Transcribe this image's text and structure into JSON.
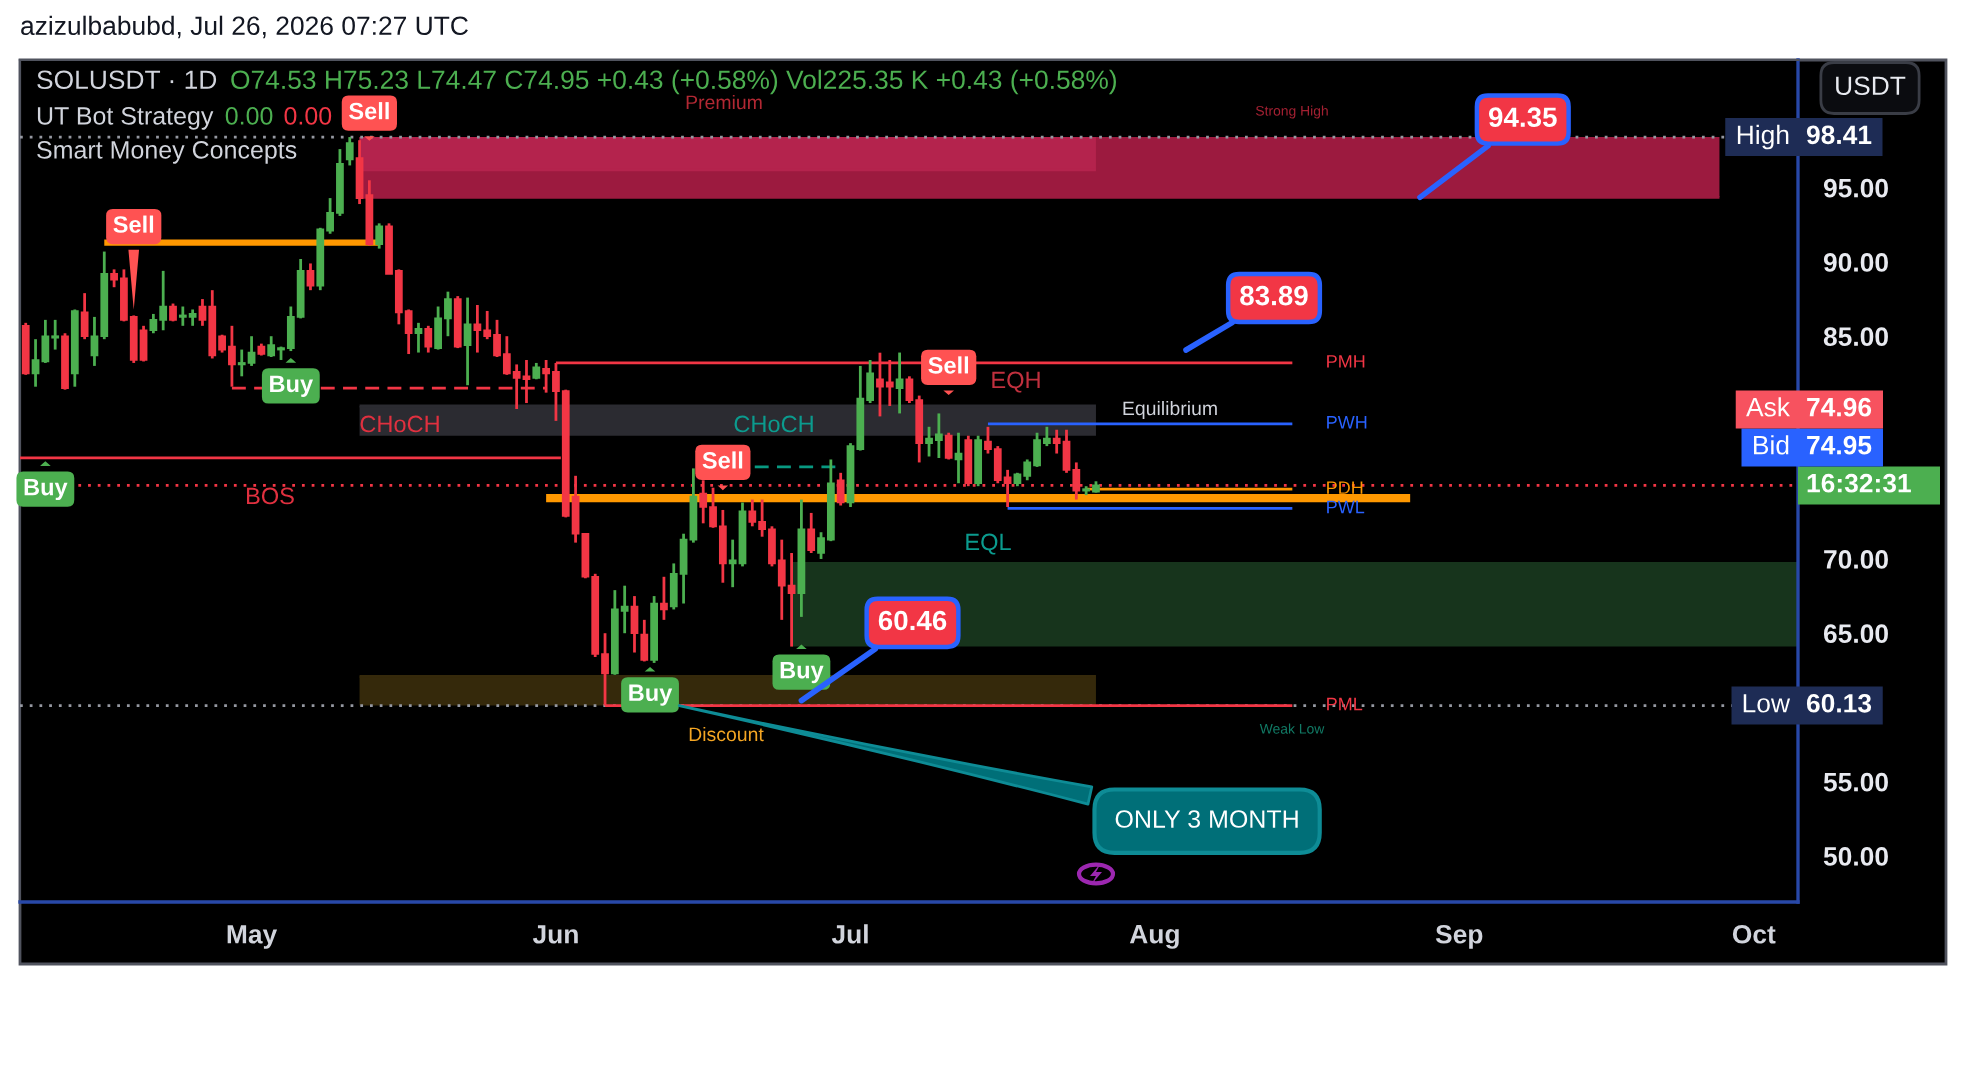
{
  "chart_data": {
    "type": "candlestick",
    "title": "SOLUSDT · 1D",
    "ylabel": "USDT",
    "x": [
      "2026-04-08",
      "2026-04-09",
      "2026-04-10",
      "2026-04-11",
      "2026-04-12",
      "2026-04-13",
      "2026-04-14",
      "2026-04-15",
      "2026-04-16",
      "2026-04-17",
      "2026-04-18",
      "2026-04-19",
      "2026-04-20",
      "2026-04-21",
      "2026-04-22",
      "2026-04-23",
      "2026-04-24",
      "2026-04-25",
      "2026-04-26",
      "2026-04-27",
      "2026-04-28",
      "2026-04-29",
      "2026-04-30",
      "2026-05-01",
      "2026-05-02",
      "2026-05-03",
      "2026-05-04",
      "2026-05-05",
      "2026-05-06",
      "2026-05-07",
      "2026-05-08",
      "2026-05-09",
      "2026-05-10",
      "2026-05-11",
      "2026-05-12",
      "2026-05-13",
      "2026-05-14",
      "2026-05-15",
      "2026-05-16",
      "2026-05-17",
      "2026-05-18",
      "2026-05-19",
      "2026-05-20",
      "2026-05-21",
      "2026-05-22",
      "2026-05-23",
      "2026-05-24",
      "2026-05-25",
      "2026-05-26",
      "2026-05-27",
      "2026-05-28",
      "2026-05-29",
      "2026-05-30",
      "2026-05-31",
      "2026-06-01",
      "2026-06-02",
      "2026-06-03",
      "2026-06-04",
      "2026-06-05",
      "2026-06-06",
      "2026-06-07",
      "2026-06-08",
      "2026-06-09",
      "2026-06-10",
      "2026-06-11",
      "2026-06-12",
      "2026-06-13",
      "2026-06-14",
      "2026-06-15",
      "2026-06-16",
      "2026-06-17",
      "2026-06-18",
      "2026-06-19",
      "2026-06-20",
      "2026-06-21",
      "2026-06-22",
      "2026-06-23",
      "2026-06-24",
      "2026-06-25",
      "2026-06-26",
      "2026-06-27",
      "2026-06-28",
      "2026-06-29",
      "2026-06-30",
      "2026-07-01",
      "2026-07-02",
      "2026-07-03",
      "2026-07-04",
      "2026-07-05",
      "2026-07-06",
      "2026-07-07",
      "2026-07-08",
      "2026-07-09",
      "2026-07-10",
      "2026-07-11",
      "2026-07-12",
      "2026-07-13",
      "2026-07-14",
      "2026-07-15",
      "2026-07-16",
      "2026-07-17",
      "2026-07-18",
      "2026-07-19",
      "2026-07-20",
      "2026-07-21",
      "2026-07-22",
      "2026-07-23",
      "2026-07-24",
      "2026-07-25",
      "2026-07-26"
    ],
    "ohlc": [
      [
        85.7,
        85.9,
        82.4,
        82.5
      ],
      [
        82.5,
        84.8,
        81.6,
        83.4
      ],
      [
        83.3,
        86.1,
        83.2,
        85.0
      ],
      [
        84.9,
        86.1,
        84.1,
        85.0
      ],
      [
        85.0,
        85.2,
        81.4,
        81.5
      ],
      [
        82.5,
        86.8,
        81.6,
        86.7
      ],
      [
        86.6,
        87.9,
        84.8,
        85.0
      ],
      [
        83.7,
        86.3,
        83.0,
        85.0
      ],
      [
        85.0,
        90.7,
        84.8,
        89.2
      ],
      [
        89.2,
        89.5,
        88.3,
        88.8
      ],
      [
        88.9,
        89.5,
        86.0,
        86.1
      ],
      [
        86.3,
        86.4,
        83.2,
        83.4
      ],
      [
        85.4,
        85.7,
        83.3,
        83.4
      ],
      [
        85.4,
        86.5,
        85.2,
        86.1
      ],
      [
        86.1,
        89.4,
        85.4,
        87.0
      ],
      [
        87.0,
        87.2,
        86.0,
        86.1
      ],
      [
        86.3,
        87.0,
        85.7,
        86.4
      ],
      [
        86.3,
        86.8,
        85.7,
        86.5
      ],
      [
        87.0,
        87.5,
        85.7,
        86.1
      ],
      [
        87.0,
        88.1,
        83.5,
        83.7
      ],
      [
        85.0,
        85.1,
        83.9,
        84.1
      ],
      [
        84.3,
        85.7,
        81.6,
        83.1
      ],
      [
        83.1,
        84.1,
        82.3,
        83.2
      ],
      [
        83.2,
        85.0,
        83.0,
        83.9
      ],
      [
        84.3,
        84.5,
        83.7,
        83.8
      ],
      [
        83.7,
        85.0,
        83.6,
        84.4
      ],
      [
        84.1,
        84.3,
        83.4,
        84.2
      ],
      [
        84.2,
        87.0,
        84.0,
        86.3
      ],
      [
        86.3,
        90.2,
        86.2,
        89.4
      ],
      [
        89.4,
        89.9,
        88.1,
        88.4
      ],
      [
        88.4,
        92.3,
        88.1,
        92.2
      ],
      [
        92.1,
        94.3,
        91.9,
        93.3
      ],
      [
        93.3,
        97.6,
        93.1,
        96.6
      ],
      [
        96.9,
        98.41,
        96.5,
        98.0
      ],
      [
        97.0,
        98.2,
        93.9,
        94.3
      ],
      [
        94.5,
        95.5,
        91.1,
        91.2
      ],
      [
        91.2,
        92.6,
        90.9,
        92.4
      ],
      [
        92.4,
        92.6,
        89.2,
        89.2
      ],
      [
        89.4,
        89.5,
        85.8,
        86.6
      ],
      [
        86.7,
        86.8,
        83.8,
        85.2
      ],
      [
        85.2,
        85.9,
        83.9,
        85.5
      ],
      [
        85.5,
        85.7,
        83.9,
        84.3
      ],
      [
        84.2,
        87.0,
        84.1,
        86.2
      ],
      [
        86.2,
        88.0,
        85.0,
        87.5
      ],
      [
        87.5,
        87.7,
        84.2,
        84.3
      ],
      [
        84.4,
        87.6,
        81.7,
        85.8
      ],
      [
        85.8,
        87.1,
        83.9,
        85.4
      ],
      [
        85.4,
        86.7,
        84.8,
        85.0
      ],
      [
        85.1,
        86.1,
        83.6,
        83.7
      ],
      [
        83.8,
        85.0,
        82.4,
        82.5
      ],
      [
        82.6,
        83.1,
        80.1,
        82.2
      ],
      [
        82.3,
        83.4,
        80.5,
        82.1
      ],
      [
        82.2,
        83.2,
        82.1,
        82.9
      ],
      [
        82.8,
        83.4,
        81.2,
        82.5
      ],
      [
        82.6,
        83.2,
        79.3,
        81.3
      ],
      [
        81.3,
        81.4,
        72.8,
        72.9
      ],
      [
        74.2,
        75.6,
        71.1,
        71.7
      ],
      [
        71.7,
        71.7,
        68.7,
        68.8
      ],
      [
        68.8,
        69.0,
        63.4,
        63.6
      ],
      [
        63.6,
        65.0,
        60.13,
        62.3
      ],
      [
        62.3,
        67.9,
        62.2,
        66.6
      ],
      [
        66.5,
        68.2,
        65.0,
        66.8
      ],
      [
        66.8,
        67.5,
        63.7,
        65.0
      ],
      [
        64.9,
        65.9,
        63.1,
        63.2
      ],
      [
        63.2,
        67.5,
        63.0,
        67.0
      ],
      [
        67.0,
        68.8,
        65.9,
        66.6
      ],
      [
        66.8,
        69.7,
        66.6,
        69.0
      ],
      [
        69.0,
        71.7,
        67.0,
        71.3
      ],
      [
        71.3,
        76.1,
        71.1,
        74.2
      ],
      [
        74.4,
        75.3,
        72.4,
        73.5
      ],
      [
        73.5,
        74.8,
        72.1,
        72.2
      ],
      [
        72.2,
        73.3,
        68.4,
        69.7
      ],
      [
        69.7,
        71.3,
        68.1,
        69.9
      ],
      [
        69.7,
        73.8,
        69.5,
        73.2
      ],
      [
        73.2,
        74.0,
        72.2,
        72.5
      ],
      [
        72.5,
        74.0,
        71.5,
        72.0
      ],
      [
        72.0,
        72.2,
        69.5,
        69.7
      ],
      [
        69.9,
        71.3,
        65.9,
        68.2
      ],
      [
        68.2,
        70.4,
        64.1,
        67.7
      ],
      [
        67.7,
        74.0,
        66.1,
        72.0
      ],
      [
        72.0,
        73.1,
        70.4,
        70.6
      ],
      [
        70.4,
        71.8,
        70.0,
        71.4
      ],
      [
        71.3,
        76.7,
        71.2,
        75.1
      ],
      [
        75.3,
        75.8,
        73.6,
        73.8
      ],
      [
        73.8,
        77.8,
        73.5,
        77.6
      ],
      [
        77.4,
        83.0,
        77.3,
        80.8
      ],
      [
        80.7,
        83.4,
        80.5,
        82.5
      ],
      [
        82.1,
        83.89,
        79.6,
        81.6
      ],
      [
        81.9,
        83.4,
        80.3,
        81.6
      ],
      [
        81.5,
        83.9,
        79.8,
        82.1
      ],
      [
        82.1,
        82.3,
        80.5,
        80.7
      ],
      [
        80.7,
        81.0,
        76.5,
        77.8
      ],
      [
        77.8,
        78.9,
        76.9,
        78.1
      ],
      [
        78.0,
        79.8,
        76.8,
        78.4
      ],
      [
        78.3,
        78.5,
        76.7,
        76.8
      ],
      [
        76.7,
        78.5,
        75.1,
        77.1
      ],
      [
        78.0,
        78.3,
        74.9,
        75.1
      ],
      [
        75.1,
        78.3,
        74.9,
        78.0
      ],
      [
        77.9,
        78.9,
        77.1,
        77.4
      ],
      [
        77.4,
        77.6,
        75.1,
        75.3
      ],
      [
        75.5,
        76.0,
        73.5,
        75.1
      ],
      [
        75.1,
        75.8,
        74.9,
        75.7
      ],
      [
        75.6,
        76.7,
        75.3,
        76.5
      ],
      [
        76.3,
        78.5,
        76.2,
        78.0
      ],
      [
        77.8,
        78.9,
        77.6,
        78.1
      ],
      [
        78.1,
        78.7,
        77.1,
        77.8
      ],
      [
        77.9,
        78.7,
        75.8,
        76.0
      ],
      [
        76.0,
        76.5,
        74.0,
        74.6
      ],
      [
        74.6,
        74.9,
        74.3,
        74.7
      ],
      [
        74.53,
        75.23,
        74.47,
        74.95
      ]
    ],
    "series": [
      {
        "type": "line",
        "x": [
          "2026-05-12",
          "2026-09-27T12:00"
        ],
        "values": [
          94.35,
          94.35
        ],
        "lower": [
          94.35,
          94.35
        ],
        "upper": [
          98.41,
          98.41
        ],
        "color": "#9c1a3f"
      },
      {
        "type": "line",
        "x": [
          "2026-05-12",
          "2026-07-26"
        ],
        "values": [
          96.2,
          96.2
        ],
        "lower": [
          96.2,
          96.2
        ],
        "upper": [
          98.41,
          98.41
        ],
        "color": "#b4234d"
      },
      {
        "type": "line",
        "x": [
          "2026-05-12",
          "2026-07-26"
        ],
        "values": [
          80.3,
          80.3
        ],
        "lower": [
          78.3,
          78.3
        ],
        "upper": [
          80.3,
          80.3
        ],
        "color": "#2b2b31"
      },
      {
        "type": "line",
        "x": [
          "2026-05-12",
          "2026-07-26"
        ],
        "values": [
          62.1,
          62.1
        ],
        "lower": [
          60.13,
          60.13
        ],
        "upper": [
          62.1,
          62.1
        ],
        "color": "#35290b"
      },
      {
        "type": "line",
        "x": [
          "2026-06-25",
          "2026-10-05T12:00"
        ],
        "values": [
          69.7,
          69.7
        ],
        "lower": [
          64.1,
          64.1
        ],
        "upper": [
          69.7,
          69.7
        ],
        "color": "#17341c"
      },
      {
        "type": "line",
        "x": [
          "2026-04-16",
          "2026-05-14"
        ],
        "values": [
          91.3,
          91.3
        ],
        "color": "#ff9800",
        "line_style": "solid"
      },
      {
        "type": "line",
        "x": [
          "2026-04-29",
          "2026-05-31"
        ],
        "values": [
          81.5,
          81.5
        ],
        "color": "#f23645",
        "line_style": "dashed"
      },
      {
        "type": "line",
        "x": [
          "2026-04-07T10:00",
          "2026-06-01T12:00"
        ],
        "values": [
          76.8,
          76.8
        ],
        "color": "#f23645",
        "line_style": "solid"
      },
      {
        "type": "line",
        "x": [
          "2026-06-21T06:00",
          "2026-06-30"
        ],
        "values": [
          76.2,
          76.2
        ],
        "color": "#089981",
        "line_style": "dashed"
      },
      {
        "type": "line",
        "x": [
          "2026-05-31",
          "2026-08-27"
        ],
        "values": [
          74.1,
          74.1
        ],
        "color": "#ff9800",
        "line_style": "solid"
      },
      {
        "type": "line",
        "name": "PMH",
        "x": [
          "2026-06-01",
          "2026-08-15"
        ],
        "values": [
          83.2,
          83.2
        ],
        "color": "#f23645",
        "line_style": "solid"
      },
      {
        "type": "line",
        "name": "PWH",
        "x": [
          "2026-07-15",
          "2026-08-15"
        ],
        "values": [
          79.1,
          79.1
        ],
        "color": "#2962ff",
        "line_style": "solid"
      },
      {
        "type": "line",
        "name": "PDH",
        "x": [
          "2026-07-25",
          "2026-08-15"
        ],
        "values": [
          74.7,
          74.7
        ],
        "color": "#ff9800",
        "line_style": "solid"
      },
      {
        "type": "line",
        "name": "PWL",
        "x": [
          "2026-07-17",
          "2026-08-15"
        ],
        "values": [
          73.4,
          73.4
        ],
        "color": "#2962ff",
        "line_style": "solid"
      },
      {
        "type": "line",
        "name": "PML",
        "x": [
          "2026-06-06",
          "2026-08-15"
        ],
        "values": [
          60.13,
          60.13
        ],
        "color": "#f23645",
        "line_style": "solid"
      }
    ],
    "ref_lines": [
      {
        "axis": "y",
        "value": 98.41,
        "label": "High",
        "color": "#9598a1",
        "line_style": "dotted"
      },
      {
        "axis": "y",
        "value": 60.13,
        "label": "Low",
        "color": "#9598a1",
        "line_style": "dotted"
      },
      {
        "axis": "y",
        "value": 74.95,
        "color": "#f23645",
        "line_style": "dotted"
      }
    ],
    "annotations": [
      "azizulbabubd, Jul 26, 2026 07:27 UTC",
      "O74.53 H75.23 L74.47 C74.95 +0.43 (+0.58%) Vol225.35 K +0.43 (+0.58%)",
      "UT Bot Strategy",
      "0.00",
      "0.00",
      "Smart Money Concepts",
      "98.41",
      "60.13",
      "16:32:31",
      "Bid",
      "74.95",
      "Ask",
      "74.96",
      {
        "text": "Sell",
        "x": "2026-04-19",
        "y": 86.4
      },
      {
        "text": "Buy",
        "x": "2026-04-10",
        "y": 76.95
      },
      {
        "text": "Buy",
        "x": "2026-05-05",
        "y": 83.9
      },
      {
        "text": "Sell",
        "x": "2026-05-13",
        "y": 97.78
      },
      {
        "text": "Buy",
        "x": "2026-06-10T14:00",
        "y": 63.1
      },
      {
        "text": "Sell",
        "x": "2026-06-18",
        "y": 74.26
      },
      {
        "text": "Buy",
        "x": "2026-06-26",
        "y": 64.62
      },
      {
        "text": "Sell",
        "x": "2026-07-11",
        "y": 80.66
      },
      "CHoCH",
      "CHoCH",
      "BOS",
      "EQH",
      "EQL",
      "Equilibrium",
      "Premium",
      "Strong High",
      "Discount",
      "Weak Low",
      {
        "text": "94.35",
        "x": "2026-08-28",
        "y": 94.35
      },
      "83.89",
      {
        "text": "60.46",
        "x": "2026-06-26",
        "y": 60.46
      },
      {
        "text": "ONLY 3 MONTH",
        "x": "2026-06-13",
        "y": 60.2
      }
    ],
    "xlim": [
      "2026-04-07T10:00",
      "2026-10-05T12:00"
    ],
    "xticks": [
      {
        "value": "2026-05-01",
        "label": "May"
      },
      {
        "value": "2026-06-01",
        "label": "Jun"
      },
      {
        "value": "2026-07-01",
        "label": "Jul"
      },
      {
        "value": "2026-08-01",
        "label": "Aug"
      },
      {
        "value": "2026-09-01",
        "label": "Sep"
      },
      {
        "value": "2026-10-01",
        "label": "Oct"
      }
    ],
    "ylim": [
      46.9,
      103.6
    ],
    "yticks": [
      {
        "value": 50,
        "label": "50.00"
      },
      {
        "value": 55,
        "label": "55.00"
      },
      {
        "value": 65,
        "label": "65.00"
      },
      {
        "value": 70,
        "label": "70.00"
      },
      {
        "value": 85,
        "label": "85.00"
      },
      {
        "value": 90,
        "label": "90.00"
      },
      {
        "value": 95,
        "label": "95.00"
      }
    ]
  }
}
